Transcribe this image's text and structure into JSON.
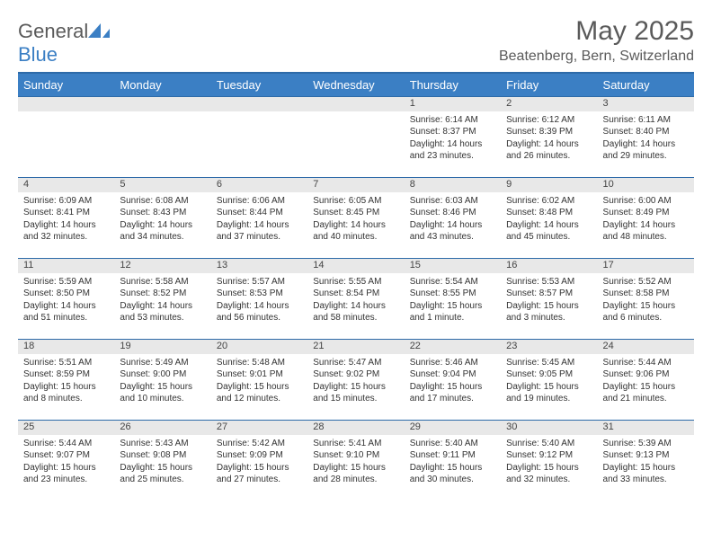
{
  "logo": {
    "word1": "General",
    "word2": "Blue",
    "fill": "#3b7fc4"
  },
  "title": "May 2025",
  "location": "Beatenberg, Bern, Switzerland",
  "colors": {
    "header_bg": "#3b7fc4",
    "header_border": "#2d6aa8",
    "daynum_bg": "#e8e8e8",
    "text": "#333333",
    "title_text": "#5a5a5a"
  },
  "weekdays": [
    "Sunday",
    "Monday",
    "Tuesday",
    "Wednesday",
    "Thursday",
    "Friday",
    "Saturday"
  ],
  "weeks": [
    [
      null,
      null,
      null,
      null,
      {
        "d": "1",
        "sr": "Sunrise: 6:14 AM",
        "ss": "Sunset: 8:37 PM",
        "dl1": "Daylight: 14 hours",
        "dl2": "and 23 minutes."
      },
      {
        "d": "2",
        "sr": "Sunrise: 6:12 AM",
        "ss": "Sunset: 8:39 PM",
        "dl1": "Daylight: 14 hours",
        "dl2": "and 26 minutes."
      },
      {
        "d": "3",
        "sr": "Sunrise: 6:11 AM",
        "ss": "Sunset: 8:40 PM",
        "dl1": "Daylight: 14 hours",
        "dl2": "and 29 minutes."
      }
    ],
    [
      {
        "d": "4",
        "sr": "Sunrise: 6:09 AM",
        "ss": "Sunset: 8:41 PM",
        "dl1": "Daylight: 14 hours",
        "dl2": "and 32 minutes."
      },
      {
        "d": "5",
        "sr": "Sunrise: 6:08 AM",
        "ss": "Sunset: 8:43 PM",
        "dl1": "Daylight: 14 hours",
        "dl2": "and 34 minutes."
      },
      {
        "d": "6",
        "sr": "Sunrise: 6:06 AM",
        "ss": "Sunset: 8:44 PM",
        "dl1": "Daylight: 14 hours",
        "dl2": "and 37 minutes."
      },
      {
        "d": "7",
        "sr": "Sunrise: 6:05 AM",
        "ss": "Sunset: 8:45 PM",
        "dl1": "Daylight: 14 hours",
        "dl2": "and 40 minutes."
      },
      {
        "d": "8",
        "sr": "Sunrise: 6:03 AM",
        "ss": "Sunset: 8:46 PM",
        "dl1": "Daylight: 14 hours",
        "dl2": "and 43 minutes."
      },
      {
        "d": "9",
        "sr": "Sunrise: 6:02 AM",
        "ss": "Sunset: 8:48 PM",
        "dl1": "Daylight: 14 hours",
        "dl2": "and 45 minutes."
      },
      {
        "d": "10",
        "sr": "Sunrise: 6:00 AM",
        "ss": "Sunset: 8:49 PM",
        "dl1": "Daylight: 14 hours",
        "dl2": "and 48 minutes."
      }
    ],
    [
      {
        "d": "11",
        "sr": "Sunrise: 5:59 AM",
        "ss": "Sunset: 8:50 PM",
        "dl1": "Daylight: 14 hours",
        "dl2": "and 51 minutes."
      },
      {
        "d": "12",
        "sr": "Sunrise: 5:58 AM",
        "ss": "Sunset: 8:52 PM",
        "dl1": "Daylight: 14 hours",
        "dl2": "and 53 minutes."
      },
      {
        "d": "13",
        "sr": "Sunrise: 5:57 AM",
        "ss": "Sunset: 8:53 PM",
        "dl1": "Daylight: 14 hours",
        "dl2": "and 56 minutes."
      },
      {
        "d": "14",
        "sr": "Sunrise: 5:55 AM",
        "ss": "Sunset: 8:54 PM",
        "dl1": "Daylight: 14 hours",
        "dl2": "and 58 minutes."
      },
      {
        "d": "15",
        "sr": "Sunrise: 5:54 AM",
        "ss": "Sunset: 8:55 PM",
        "dl1": "Daylight: 15 hours",
        "dl2": "and 1 minute."
      },
      {
        "d": "16",
        "sr": "Sunrise: 5:53 AM",
        "ss": "Sunset: 8:57 PM",
        "dl1": "Daylight: 15 hours",
        "dl2": "and 3 minutes."
      },
      {
        "d": "17",
        "sr": "Sunrise: 5:52 AM",
        "ss": "Sunset: 8:58 PM",
        "dl1": "Daylight: 15 hours",
        "dl2": "and 6 minutes."
      }
    ],
    [
      {
        "d": "18",
        "sr": "Sunrise: 5:51 AM",
        "ss": "Sunset: 8:59 PM",
        "dl1": "Daylight: 15 hours",
        "dl2": "and 8 minutes."
      },
      {
        "d": "19",
        "sr": "Sunrise: 5:49 AM",
        "ss": "Sunset: 9:00 PM",
        "dl1": "Daylight: 15 hours",
        "dl2": "and 10 minutes."
      },
      {
        "d": "20",
        "sr": "Sunrise: 5:48 AM",
        "ss": "Sunset: 9:01 PM",
        "dl1": "Daylight: 15 hours",
        "dl2": "and 12 minutes."
      },
      {
        "d": "21",
        "sr": "Sunrise: 5:47 AM",
        "ss": "Sunset: 9:02 PM",
        "dl1": "Daylight: 15 hours",
        "dl2": "and 15 minutes."
      },
      {
        "d": "22",
        "sr": "Sunrise: 5:46 AM",
        "ss": "Sunset: 9:04 PM",
        "dl1": "Daylight: 15 hours",
        "dl2": "and 17 minutes."
      },
      {
        "d": "23",
        "sr": "Sunrise: 5:45 AM",
        "ss": "Sunset: 9:05 PM",
        "dl1": "Daylight: 15 hours",
        "dl2": "and 19 minutes."
      },
      {
        "d": "24",
        "sr": "Sunrise: 5:44 AM",
        "ss": "Sunset: 9:06 PM",
        "dl1": "Daylight: 15 hours",
        "dl2": "and 21 minutes."
      }
    ],
    [
      {
        "d": "25",
        "sr": "Sunrise: 5:44 AM",
        "ss": "Sunset: 9:07 PM",
        "dl1": "Daylight: 15 hours",
        "dl2": "and 23 minutes."
      },
      {
        "d": "26",
        "sr": "Sunrise: 5:43 AM",
        "ss": "Sunset: 9:08 PM",
        "dl1": "Daylight: 15 hours",
        "dl2": "and 25 minutes."
      },
      {
        "d": "27",
        "sr": "Sunrise: 5:42 AM",
        "ss": "Sunset: 9:09 PM",
        "dl1": "Daylight: 15 hours",
        "dl2": "and 27 minutes."
      },
      {
        "d": "28",
        "sr": "Sunrise: 5:41 AM",
        "ss": "Sunset: 9:10 PM",
        "dl1": "Daylight: 15 hours",
        "dl2": "and 28 minutes."
      },
      {
        "d": "29",
        "sr": "Sunrise: 5:40 AM",
        "ss": "Sunset: 9:11 PM",
        "dl1": "Daylight: 15 hours",
        "dl2": "and 30 minutes."
      },
      {
        "d": "30",
        "sr": "Sunrise: 5:40 AM",
        "ss": "Sunset: 9:12 PM",
        "dl1": "Daylight: 15 hours",
        "dl2": "and 32 minutes."
      },
      {
        "d": "31",
        "sr": "Sunrise: 5:39 AM",
        "ss": "Sunset: 9:13 PM",
        "dl1": "Daylight: 15 hours",
        "dl2": "and 33 minutes."
      }
    ]
  ]
}
